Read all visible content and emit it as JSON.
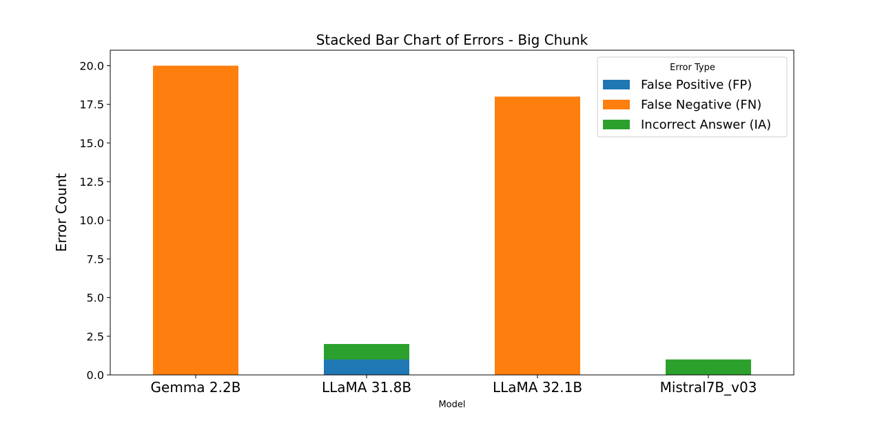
{
  "chart_data": {
    "type": "bar",
    "stacked": true,
    "title": "Stacked Bar Chart of Errors - Big Chunk",
    "xlabel": "Model",
    "ylabel": "Error Count",
    "categories": [
      "Gemma 2.2B",
      "LLaMA 31.8B",
      "LLaMA 32.1B",
      "Mistral7B_v03"
    ],
    "series": [
      {
        "name": "False Positive (FP)",
        "values": [
          0,
          1,
          0,
          0
        ],
        "color": "#1f77b4"
      },
      {
        "name": "False Negative (FN)",
        "values": [
          20,
          0,
          18,
          0
        ],
        "color": "#ff7f0e"
      },
      {
        "name": "Incorrect Answer (IA)",
        "values": [
          0,
          1,
          0,
          1
        ],
        "color": "#2ca02c"
      }
    ],
    "ylim": [
      0,
      21
    ],
    "yticks": [
      "0.0",
      "2.5",
      "5.0",
      "7.5",
      "10.0",
      "12.5",
      "15.0",
      "17.5",
      "20.0"
    ],
    "legend": {
      "title": "Error Type",
      "placement": "top-right"
    },
    "grid": false
  }
}
